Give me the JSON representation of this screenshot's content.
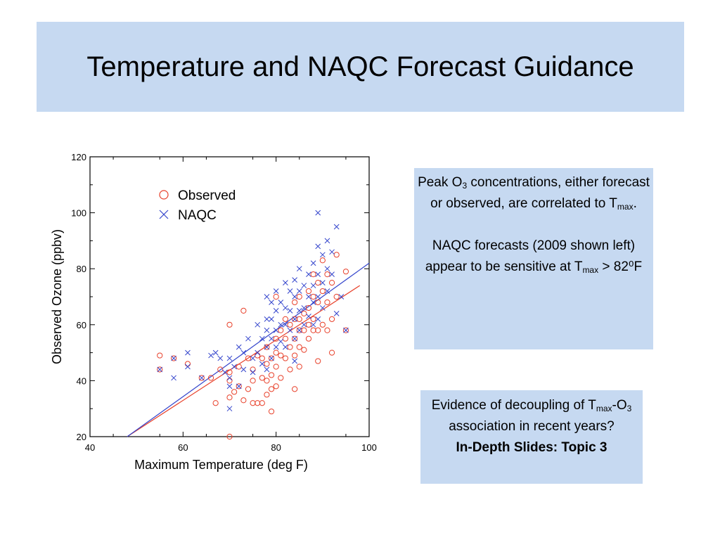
{
  "slide": {
    "title": "Temperature and NAQC Forecast Guidance"
  },
  "box1": {
    "p1": {
      "peak": "Peak O",
      "o3_sub": "3",
      "mid": " concentrations, either forecast or observed, are correlated to T",
      "tmax_sub": "max",
      "end": "."
    },
    "p2": {
      "start": "NAQC forecasts (2009 shown left) appear to be sensitive at T",
      "tmax_sub": "max",
      "end": " > 82⁰F"
    }
  },
  "box2": {
    "line1": "Evidence of decoupling of T",
    "tmax_sub": "max",
    "dash": "-O",
    "o3_sub": "3",
    "line2_end": " association in recent years?",
    "link": "In-Depth Slides: Topic 3"
  },
  "chart_data": {
    "type": "scatter",
    "xlabel": "Maximum Temperature (deg F)",
    "ylabel": "Observed Ozone (ppbv)",
    "xlim": [
      40,
      100
    ],
    "ylim": [
      20,
      120
    ],
    "xticks": [
      40,
      60,
      80,
      100
    ],
    "yticks": [
      20,
      40,
      60,
      80,
      100,
      120
    ],
    "legend_position": "top-left",
    "series": [
      {
        "name": "Observed",
        "marker": "circle",
        "color": "#e8402a",
        "points": [
          [
            55,
            49
          ],
          [
            55,
            44
          ],
          [
            58,
            48
          ],
          [
            61,
            46
          ],
          [
            64,
            41
          ],
          [
            66,
            41
          ],
          [
            67,
            32
          ],
          [
            68,
            44
          ],
          [
            70,
            60
          ],
          [
            70,
            43
          ],
          [
            70,
            40
          ],
          [
            70,
            34
          ],
          [
            70,
            20
          ],
          [
            71,
            36
          ],
          [
            72,
            45
          ],
          [
            72,
            38
          ],
          [
            73,
            65
          ],
          [
            73,
            33
          ],
          [
            74,
            48
          ],
          [
            74,
            37
          ],
          [
            75,
            44
          ],
          [
            75,
            40
          ],
          [
            75,
            32
          ],
          [
            76,
            49
          ],
          [
            76,
            32
          ],
          [
            77,
            48
          ],
          [
            77,
            41
          ],
          [
            77,
            32
          ],
          [
            78,
            52
          ],
          [
            78,
            46
          ],
          [
            78,
            40
          ],
          [
            78,
            35
          ],
          [
            79,
            48
          ],
          [
            79,
            42
          ],
          [
            79,
            37
          ],
          [
            79,
            29
          ],
          [
            80,
            70
          ],
          [
            80,
            55
          ],
          [
            80,
            50
          ],
          [
            80,
            45
          ],
          [
            80,
            38
          ],
          [
            81,
            58
          ],
          [
            81,
            49
          ],
          [
            81,
            41
          ],
          [
            82,
            62
          ],
          [
            82,
            55
          ],
          [
            82,
            48
          ],
          [
            83,
            60
          ],
          [
            83,
            52
          ],
          [
            83,
            44
          ],
          [
            84,
            68
          ],
          [
            84,
            62
          ],
          [
            84,
            55
          ],
          [
            84,
            49
          ],
          [
            84,
            37
          ],
          [
            85,
            70
          ],
          [
            85,
            62
          ],
          [
            85,
            58
          ],
          [
            85,
            52
          ],
          [
            85,
            45
          ],
          [
            86,
            64
          ],
          [
            86,
            58
          ],
          [
            86,
            51
          ],
          [
            87,
            72
          ],
          [
            87,
            66
          ],
          [
            87,
            60
          ],
          [
            87,
            55
          ],
          [
            88,
            78
          ],
          [
            88,
            70
          ],
          [
            88,
            62
          ],
          [
            88,
            58
          ],
          [
            89,
            75
          ],
          [
            89,
            68
          ],
          [
            89,
            58
          ],
          [
            89,
            47
          ],
          [
            90,
            83
          ],
          [
            90,
            72
          ],
          [
            90,
            60
          ],
          [
            91,
            78
          ],
          [
            91,
            68
          ],
          [
            91,
            58
          ],
          [
            92,
            75
          ],
          [
            92,
            62
          ],
          [
            92,
            50
          ],
          [
            93,
            85
          ],
          [
            93,
            70
          ],
          [
            95,
            79
          ],
          [
            95,
            58
          ]
        ],
        "fit": [
          [
            48,
            20
          ],
          [
            98,
            74
          ]
        ]
      },
      {
        "name": "NAQC",
        "marker": "x",
        "color": "#3344cc",
        "points": [
          [
            55,
            44
          ],
          [
            58,
            48
          ],
          [
            58,
            41
          ],
          [
            61,
            50
          ],
          [
            61,
            45
          ],
          [
            64,
            41
          ],
          [
            66,
            49
          ],
          [
            67,
            50
          ],
          [
            68,
            48
          ],
          [
            69,
            43
          ],
          [
            70,
            48
          ],
          [
            70,
            41
          ],
          [
            70,
            38
          ],
          [
            70,
            30
          ],
          [
            71,
            45
          ],
          [
            72,
            52
          ],
          [
            72,
            38
          ],
          [
            73,
            50
          ],
          [
            73,
            44
          ],
          [
            74,
            55
          ],
          [
            75,
            48
          ],
          [
            75,
            43
          ],
          [
            76,
            60
          ],
          [
            76,
            50
          ],
          [
            77,
            55
          ],
          [
            77,
            46
          ],
          [
            78,
            70
          ],
          [
            78,
            62
          ],
          [
            78,
            58
          ],
          [
            78,
            52
          ],
          [
            78,
            44
          ],
          [
            79,
            68
          ],
          [
            79,
            62
          ],
          [
            79,
            55
          ],
          [
            79,
            48
          ],
          [
            80,
            72
          ],
          [
            80,
            65
          ],
          [
            80,
            58
          ],
          [
            80,
            52
          ],
          [
            81,
            68
          ],
          [
            81,
            60
          ],
          [
            81,
            54
          ],
          [
            82,
            75
          ],
          [
            82,
            66
          ],
          [
            82,
            60
          ],
          [
            82,
            52
          ],
          [
            83,
            72
          ],
          [
            83,
            65
          ],
          [
            83,
            58
          ],
          [
            84,
            76
          ],
          [
            84,
            70
          ],
          [
            84,
            62
          ],
          [
            84,
            55
          ],
          [
            84,
            47
          ],
          [
            85,
            80
          ],
          [
            85,
            72
          ],
          [
            85,
            65
          ],
          [
            85,
            58
          ],
          [
            86,
            74
          ],
          [
            86,
            66
          ],
          [
            86,
            60
          ],
          [
            87,
            78
          ],
          [
            87,
            70
          ],
          [
            87,
            63
          ],
          [
            88,
            82
          ],
          [
            88,
            74
          ],
          [
            88,
            68
          ],
          [
            88,
            60
          ],
          [
            89,
            100
          ],
          [
            89,
            88
          ],
          [
            89,
            78
          ],
          [
            89,
            70
          ],
          [
            89,
            62
          ],
          [
            90,
            85
          ],
          [
            90,
            75
          ],
          [
            90,
            66
          ],
          [
            91,
            90
          ],
          [
            91,
            80
          ],
          [
            91,
            72
          ],
          [
            92,
            86
          ],
          [
            92,
            78
          ],
          [
            93,
            95
          ],
          [
            93,
            64
          ],
          [
            94,
            70
          ],
          [
            95,
            58
          ]
        ],
        "fit": [
          [
            48,
            20
          ],
          [
            100,
            82
          ]
        ]
      }
    ]
  }
}
